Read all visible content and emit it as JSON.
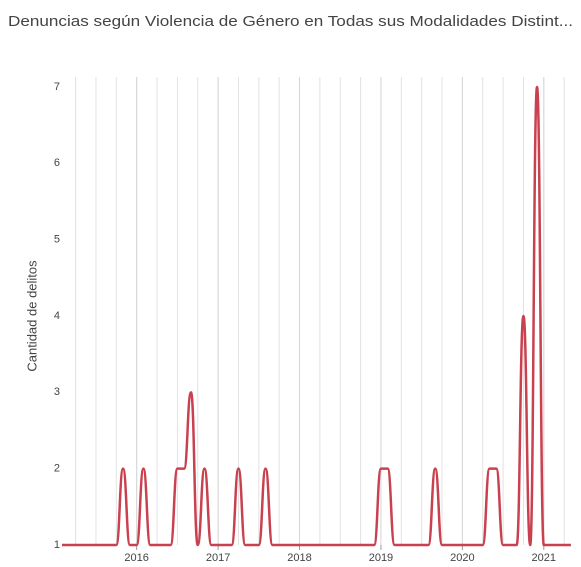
{
  "chart_data": {
    "type": "line",
    "title": "Denuncias según Violencia de Género en Todas sus Modalidades Distint...",
    "y_label": "Cantidad de delitos",
    "x": [
      2015.083,
      2015.167,
      2015.25,
      2015.333,
      2015.417,
      2015.5,
      2015.583,
      2015.667,
      2015.75,
      2015.833,
      2015.917,
      2016,
      2016.083,
      2016.167,
      2016.25,
      2016.333,
      2016.417,
      2016.5,
      2016.583,
      2016.667,
      2016.75,
      2016.833,
      2016.917,
      2017,
      2017.083,
      2017.167,
      2017.25,
      2017.333,
      2017.417,
      2017.5,
      2017.583,
      2017.667,
      2017.75,
      2017.833,
      2017.917,
      2018,
      2018.083,
      2018.167,
      2018.25,
      2018.333,
      2018.417,
      2018.5,
      2018.583,
      2018.667,
      2018.75,
      2018.833,
      2018.917,
      2019,
      2019.083,
      2019.167,
      2019.25,
      2019.333,
      2019.417,
      2019.5,
      2019.583,
      2019.667,
      2019.75,
      2019.833,
      2019.917,
      2020,
      2020.083,
      2020.167,
      2020.25,
      2020.333,
      2020.417,
      2020.5,
      2020.583,
      2020.667,
      2020.75,
      2020.833,
      2020.917,
      2021,
      2021.083,
      2021.167,
      2021.25,
      2021.333
    ],
    "series": [
      {
        "name": "Cantidad de delitos",
        "color": "#c9404f",
        "values": [
          1,
          1,
          1,
          1,
          1,
          1,
          1,
          1,
          1,
          2,
          1,
          1,
          2,
          1,
          1,
          1,
          1,
          2,
          2,
          3,
          1,
          2,
          1,
          1,
          1,
          1,
          2,
          1,
          1,
          1,
          2,
          1,
          1,
          1,
          1,
          1,
          1,
          1,
          1,
          1,
          1,
          1,
          1,
          1,
          1,
          1,
          1,
          2,
          2,
          1,
          1,
          1,
          1,
          1,
          1,
          2,
          1,
          1,
          1,
          1,
          1,
          1,
          1,
          2,
          2,
          1,
          1,
          1,
          4,
          1,
          7,
          1,
          1,
          1,
          1,
          1
        ]
      }
    ],
    "xlim": [
      2015.083,
      2021.42
    ],
    "xticks": [
      2016,
      2017,
      2018,
      2019,
      2020,
      2021
    ],
    "ylim": [
      1,
      7
    ],
    "yticks": [
      1,
      2,
      3,
      4,
      5,
      6,
      7
    ],
    "grid": true
  }
}
